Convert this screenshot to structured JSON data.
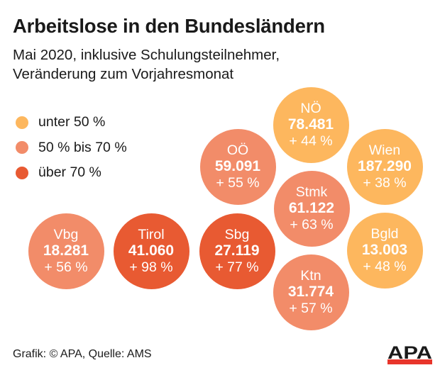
{
  "header": {
    "title": "Arbeitslose in den Bundesländern",
    "subtitle_line1": "Mai 2020, inklusive Schulungsteilnehmer,",
    "subtitle_line2": "Veränderung zum Vorjahresmonat"
  },
  "chart_data": {
    "type": "bubble-grid",
    "title": "Arbeitslose in den Bundesländern",
    "subtitle": "Mai 2020, inklusive Schulungsteilnehmer, Veränderung zum Vorjahresmonat",
    "legend": [
      {
        "label": "unter 50 %",
        "color": "#fdb75e",
        "range": [
          0,
          50
        ]
      },
      {
        "label": "50 % bis 70 %",
        "color": "#f28c69",
        "range": [
          50,
          70
        ]
      },
      {
        "label": "über 70 %",
        "color": "#e85a32",
        "range": [
          70,
          null
        ]
      }
    ],
    "points": [
      {
        "name": "NÖ",
        "value": "78.481",
        "value_num": 78481,
        "change": "+ 44 %",
        "change_pct": 44,
        "category": 0
      },
      {
        "name": "OÖ",
        "value": "59.091",
        "value_num": 59091,
        "change": "+ 55 %",
        "change_pct": 55,
        "category": 1
      },
      {
        "name": "Wien",
        "value": "187.290",
        "value_num": 187290,
        "change": "+ 38 %",
        "change_pct": 38,
        "category": 0
      },
      {
        "name": "Stmk",
        "value": "61.122",
        "value_num": 61122,
        "change": "+ 63 %",
        "change_pct": 63,
        "category": 1
      },
      {
        "name": "Vbg",
        "value": "18.281",
        "value_num": 18281,
        "change": "+ 56 %",
        "change_pct": 56,
        "category": 1
      },
      {
        "name": "Tirol",
        "value": "41.060",
        "value_num": 41060,
        "change": "+ 98 %",
        "change_pct": 98,
        "category": 2
      },
      {
        "name": "Sbg",
        "value": "27.119",
        "value_num": 27119,
        "change": "+ 77 %",
        "change_pct": 77,
        "category": 2
      },
      {
        "name": "Bgld",
        "value": "13.003",
        "value_num": 13003,
        "change": "+ 48 %",
        "change_pct": 48,
        "category": 0
      },
      {
        "name": "Ktn",
        "value": "31.774",
        "value_num": 31774,
        "change": "+ 57 %",
        "change_pct": 57,
        "category": 1
      }
    ]
  },
  "footer": {
    "credit": "Grafik: © APA, Quelle: AMS",
    "logo_text": "APA",
    "logo_colors": {
      "text": "#1a1a1a",
      "bar": "#e8352b"
    }
  }
}
